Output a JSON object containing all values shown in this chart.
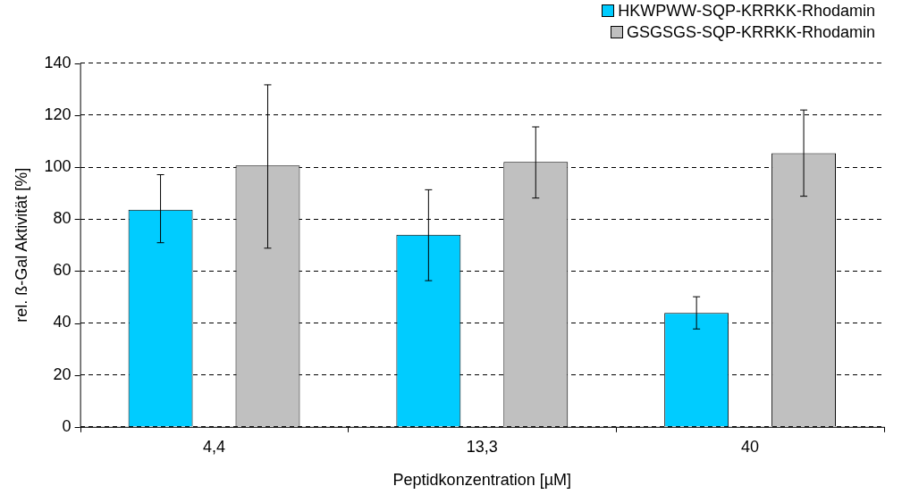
{
  "chart_data": {
    "type": "bar",
    "xlabel": "Peptidkonzentration [µM]",
    "ylabel": "rel. ß-Gal Aktivität [%]",
    "categories": [
      "4,4",
      "13,3",
      "40"
    ],
    "series": [
      {
        "name": "HKWPWW-SQP-KRRKK-Rhodamin",
        "color": "#00ccff",
        "values": [
          83.6,
          74.0,
          43.9
        ],
        "errors": [
          [
            70.9,
            97.1
          ],
          [
            56.3,
            91.3
          ],
          [
            37.7,
            50.1
          ]
        ]
      },
      {
        "name": "GSGSGS-SQP-KRRKK-Rhodamin",
        "color": "#c0c0c0",
        "values": [
          100.6,
          102.0,
          105.4
        ],
        "errors": [
          [
            68.8,
            131.7
          ],
          [
            88.1,
            115.5
          ],
          [
            88.8,
            122.0
          ]
        ]
      }
    ],
    "ylim": [
      0,
      140
    ],
    "yticks": [
      0,
      20,
      40,
      60,
      80,
      100,
      120,
      140
    ],
    "grid": "y",
    "legend": "top right"
  }
}
